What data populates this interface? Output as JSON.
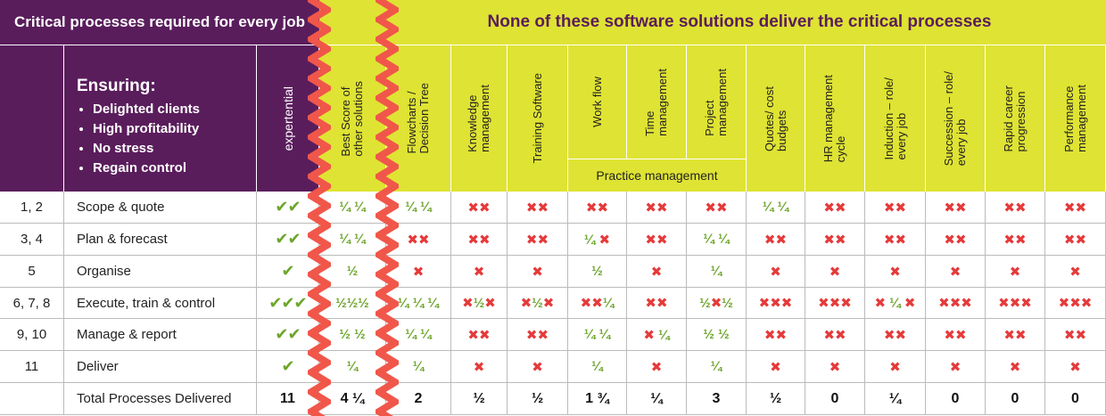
{
  "header": {
    "left_title": "Critical processes required for every job",
    "right_title": "None of these software solutions deliver the critical processes"
  },
  "ensuring": {
    "title": "Ensuring:",
    "items": [
      "Delighted clients",
      "High profitability",
      "No stress",
      "Regain control"
    ]
  },
  "expertential_label": "expertential",
  "columns": [
    {
      "id": "best",
      "label": "Best Score of\nother solutions"
    },
    {
      "id": "flow",
      "label": "Flowcharts /\nDecision Tree"
    },
    {
      "id": "know",
      "label": "Knowledge\nmanagement"
    },
    {
      "id": "train",
      "label": "Training Software"
    },
    {
      "id": "work",
      "label": "Work flow"
    },
    {
      "id": "time",
      "label": "Time\nmanagement"
    },
    {
      "id": "proj",
      "label": "Project\nmanagement"
    },
    {
      "id": "quote",
      "label": "Quotes/ cost\nbudgets"
    },
    {
      "id": "hr",
      "label": "HR management\ncycle"
    },
    {
      "id": "induct",
      "label": "Induction – role/\nevery job"
    },
    {
      "id": "succ",
      "label": "Succession – role/\nevery job"
    },
    {
      "id": "career",
      "label": "Rapid career\nprogression"
    },
    {
      "id": "perf",
      "label": "Performance\nmanagement"
    }
  ],
  "group_label": "Practice management",
  "rows": [
    {
      "nums": "1, 2",
      "process": "Scope & quote",
      "exp": "✔✔",
      "cells": [
        "¼ ¼",
        "¼ ¼",
        "✖✖",
        "✖✖",
        "✖✖",
        "✖✖",
        "✖✖",
        "¼ ¼",
        "✖✖",
        "✖✖",
        "✖✖",
        "✖✖",
        "✖✖"
      ]
    },
    {
      "nums": "3, 4",
      "process": "Plan & forecast",
      "exp": "✔✔",
      "cells": [
        "¼ ¼",
        "✖✖",
        "✖✖",
        "✖✖",
        "¼ ✖",
        "✖✖",
        "¼ ¼",
        "✖✖",
        "✖✖",
        "✖✖",
        "✖✖",
        "✖✖",
        "✖✖"
      ]
    },
    {
      "nums": "5",
      "process": "Organise",
      "exp": "✔",
      "cells": [
        "½",
        "✖",
        "✖",
        "✖",
        "½",
        "✖",
        "¼",
        "✖",
        "✖",
        "✖",
        "✖",
        "✖",
        "✖"
      ]
    },
    {
      "nums": "6, 7, 8",
      "process": "Execute, train & control",
      "exp": "✔✔✔",
      "cells": [
        "½½½",
        "¼ ¼ ¼",
        "✖½✖",
        "✖½✖",
        "✖✖¼",
        "✖✖",
        "½✖½",
        "✖✖✖",
        "✖✖✖",
        "✖ ¼ ✖",
        "✖✖✖",
        "✖✖✖",
        "✖✖✖"
      ]
    },
    {
      "nums": "9, 10",
      "process": "Manage & report",
      "exp": "✔✔",
      "cells": [
        "½ ½",
        "¼ ¼",
        "✖✖",
        "✖✖",
        "¼ ¼",
        "✖ ¼",
        "½ ½",
        "✖✖",
        "✖✖",
        "✖✖",
        "✖✖",
        "✖✖",
        "✖✖"
      ]
    },
    {
      "nums": "11",
      "process": "Deliver",
      "exp": "✔",
      "cells": [
        "¼",
        "¼",
        "✖",
        "✖",
        "¼",
        "✖",
        "¼",
        "✖",
        "✖",
        "✖",
        "✖",
        "✖",
        "✖"
      ]
    },
    {
      "nums": "",
      "process": "Total Processes Delivered",
      "exp": "11",
      "cells": [
        "4 ¼",
        "2",
        "½",
        "½",
        "1 ¾",
        "¼",
        "3",
        "½",
        "0",
        "¼",
        "0",
        "0",
        "0"
      ]
    }
  ],
  "colors": {
    "purple": "#5a1d5c",
    "yellow": "#dfe333",
    "red": "#e63a3a",
    "green": "#6da52c",
    "zigzag": "#f0574a"
  }
}
